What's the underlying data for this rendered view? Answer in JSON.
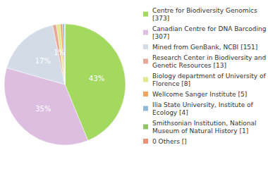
{
  "chart_data": {
    "type": "pie",
    "categories": [
      "Centre for Biodiversity Genomics [373]",
      "Canadian Centre for DNA Barcoding [307]",
      "Mined from GenBank, NCBI [151]",
      "Research Center in Biodiversity and Genetic Resources [13]",
      "Biology department of University of Florence [8]",
      "Wellcome Sanger Institute [5]",
      "Ilia State University, Institute of Ecology [4]",
      "Smithsonian Institution, National Museum of Natural History [1]",
      "0 Others []"
    ],
    "values": [
      43,
      35,
      17,
      1,
      1,
      0.6,
      0.5,
      0.1,
      0
    ],
    "value_labels": [
      "43%",
      "35%",
      "17%",
      "1%",
      null,
      null,
      null,
      null,
      null
    ],
    "colors": [
      "#a3d95f",
      "#ddbde0",
      "#d3dce6",
      "#e8a899",
      "#e2e891",
      "#f2a35e",
      "#8fb8da",
      "#93c464",
      "#ec9078"
    ],
    "data_labels": true,
    "legend": "right"
  }
}
